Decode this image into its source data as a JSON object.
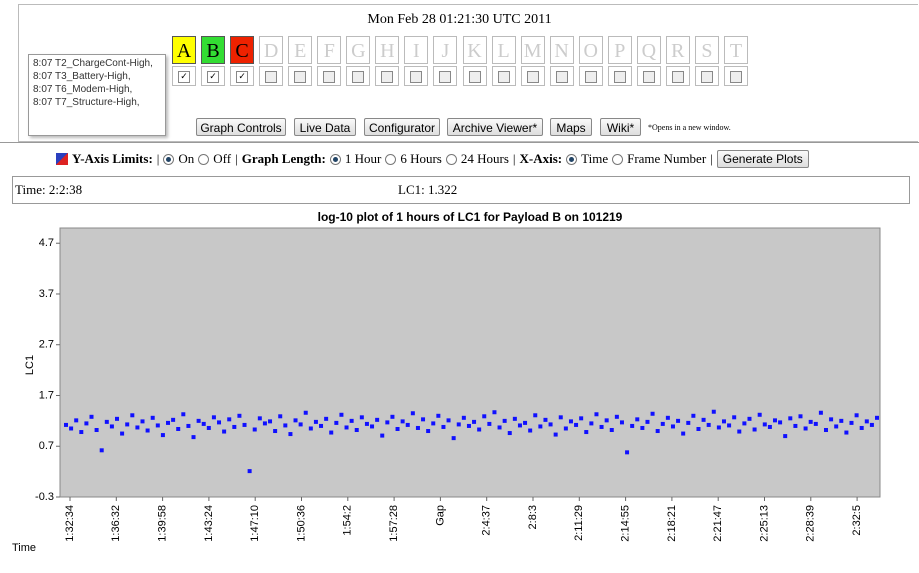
{
  "header": {
    "datetime": "Mon Feb 28 01:21:30 UTC 2011",
    "alerts": [
      "8:07 T2_ChargeCont-High,",
      "8:07 T3_Battery-High,",
      "8:07 T6_Modem-High,",
      "8:07 T7_Structure-High,"
    ],
    "payloads": [
      {
        "letter": "A",
        "color": "#ffff00",
        "active": true
      },
      {
        "letter": "B",
        "color": "#33dd33",
        "active": true
      },
      {
        "letter": "C",
        "color": "#ee2200",
        "active": true
      },
      {
        "letter": "D",
        "active": false
      },
      {
        "letter": "E",
        "active": false
      },
      {
        "letter": "F",
        "active": false
      },
      {
        "letter": "G",
        "active": false
      },
      {
        "letter": "H",
        "active": false
      },
      {
        "letter": "I",
        "active": false
      },
      {
        "letter": "J",
        "active": false
      },
      {
        "letter": "K",
        "active": false
      },
      {
        "letter": "L",
        "active": false
      },
      {
        "letter": "M",
        "active": false
      },
      {
        "letter": "N",
        "active": false
      },
      {
        "letter": "O",
        "active": false
      },
      {
        "letter": "P",
        "active": false
      },
      {
        "letter": "Q",
        "active": false
      },
      {
        "letter": "R",
        "active": false
      },
      {
        "letter": "S",
        "active": false
      },
      {
        "letter": "T",
        "active": false
      }
    ]
  },
  "buttons": [
    "Graph Controls",
    "Live Data",
    "Configurator",
    "Archive Viewer*",
    "Maps",
    "Wiki*"
  ],
  "note": "*Opens in a new window.",
  "options": {
    "y_limits_label": "Y-Axis Limits:",
    "y_limits": [
      "On",
      "Off"
    ],
    "y_limits_selected": 0,
    "graph_length_label": "Graph Length:",
    "lengths": [
      "1 Hour",
      "6 Hours",
      "24 Hours"
    ],
    "length_selected": 0,
    "x_axis_label": "X-Axis:",
    "x_axis_options": [
      "Time",
      "Frame Number"
    ],
    "x_axis_selected": 0,
    "generate": "Generate Plots"
  },
  "info": {
    "time": "Time: 2:2:38",
    "value": "LC1: 1.322"
  },
  "chart_data": {
    "type": "scatter",
    "title": "log-10 plot of 1 hours of LC1 for Payload B on 101219",
    "ylabel": "LC1",
    "xlabel": "Time",
    "color": "#1010ff",
    "background": "#c8c8c8",
    "categories": [
      "1:32:34",
      "1:36:32",
      "1:39:58",
      "1:43:24",
      "1:47:10",
      "1:50:36",
      "1:54:2",
      "1:57:28",
      "Gap",
      "2:4:37",
      "2:8:3",
      "2:11:29",
      "2:14:55",
      "2:18:21",
      "2:21:47",
      "2:25:13",
      "2:28:39",
      "2:32:5"
    ],
    "ylim": [
      -0.3,
      5.0
    ],
    "yticks": [
      -0.3,
      0.7,
      1.7,
      2.7,
      3.7,
      4.7
    ],
    "values": [
      1.12,
      1.05,
      1.21,
      0.98,
      1.15,
      1.28,
      1.02,
      0.62,
      1.18,
      1.09,
      1.24,
      0.95,
      1.13,
      1.31,
      1.07,
      1.19,
      1.01,
      1.26,
      1.11,
      0.92,
      1.16,
      1.22,
      1.04,
      1.33,
      1.1,
      0.88,
      1.2,
      1.14,
      1.06,
      1.27,
      1.17,
      0.99,
      1.23,
      1.08,
      1.3,
      1.12,
      0.21,
      1.03,
      1.25,
      1.15,
      1.19,
      1.0,
      1.29,
      1.11,
      0.94,
      1.21,
      1.13,
      1.36,
      1.05,
      1.18,
      1.1,
      1.24,
      0.97,
      1.16,
      1.32,
      1.07,
      1.2,
      1.02,
      1.27,
      1.14,
      1.09,
      1.22,
      0.91,
      1.17,
      1.28,
      1.04,
      1.19,
      1.12,
      1.35,
      1.06,
      1.23,
      1.0,
      1.15,
      1.3,
      1.08,
      1.21,
      0.86,
      1.13,
      1.26,
      1.1,
      1.18,
      1.03,
      1.29,
      1.14,
      1.37,
      1.07,
      1.2,
      0.96,
      1.24,
      1.11,
      1.16,
      1.01,
      1.31,
      1.09,
      1.22,
      1.13,
      0.93,
      1.27,
      1.05,
      1.19,
      1.12,
      1.25,
      0.98,
      1.15,
      1.33,
      1.08,
      1.21,
      1.02,
      1.28,
      1.17,
      0.58,
      1.1,
      1.23,
      1.06,
      1.18,
      1.34,
      1.0,
      1.14,
      1.26,
      1.09,
      1.2,
      0.95,
      1.16,
      1.3,
      1.04,
      1.22,
      1.12,
      1.38,
      1.07,
      1.19,
      1.11,
      1.27,
      0.99,
      1.15,
      1.24,
      1.03,
      1.32,
      1.13,
      1.08,
      1.21,
      1.17,
      0.9,
      1.25,
      1.1,
      1.29,
      1.05,
      1.18,
      1.14,
      1.36,
      1.02,
      1.23,
      1.09,
      1.2,
      0.97,
      1.16,
      1.31,
      1.06,
      1.19,
      1.12,
      1.26
    ]
  }
}
